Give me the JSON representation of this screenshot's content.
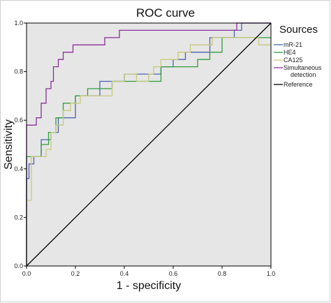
{
  "chart_data": {
    "type": "line",
    "title": "ROC curve",
    "xlabel": "1 - specificity",
    "ylabel": "Sensitivity",
    "xlim": [
      0.0,
      1.0
    ],
    "ylim": [
      0.0,
      1.0
    ],
    "xticks": [
      "0.0",
      "0.2",
      "0.4",
      "0.6",
      "0.8",
      "1.0"
    ],
    "yticks": [
      "0.0",
      "0.2",
      "0.4",
      "0.6",
      "0.8",
      "1.0"
    ],
    "grid": false,
    "background": "#e6e6e6",
    "legend": {
      "title": "Sources",
      "placement": "right"
    },
    "series": [
      {
        "name": "mR-21",
        "color": "#4a63b5",
        "x": [
          0,
          0,
          0.01,
          0.01,
          0.03,
          0.03,
          0.06,
          0.06,
          0.1,
          0.1,
          0.13,
          0.13,
          0.2,
          0.2,
          0.3,
          0.3,
          0.4,
          0.4,
          0.55,
          0.55,
          0.6,
          0.6,
          0.65,
          0.65,
          0.75,
          0.75,
          0.85,
          0.85,
          0.88,
          0.88,
          1
        ],
        "y": [
          0,
          0.36,
          0.36,
          0.42,
          0.42,
          0.45,
          0.45,
          0.52,
          0.52,
          0.55,
          0.55,
          0.61,
          0.61,
          0.7,
          0.7,
          0.76,
          0.76,
          0.79,
          0.79,
          0.82,
          0.82,
          0.85,
          0.85,
          0.88,
          0.88,
          0.94,
          0.94,
          0.97,
          0.97,
          1.0,
          1.0
        ]
      },
      {
        "name": "HE4",
        "color": "#2e9e3e",
        "x": [
          0,
          0,
          0.06,
          0.06,
          0.09,
          0.09,
          0.12,
          0.12,
          0.15,
          0.15,
          0.2,
          0.2,
          0.25,
          0.25,
          0.35,
          0.35,
          0.55,
          0.55,
          0.7,
          0.7,
          0.75,
          0.75,
          0.8,
          0.8,
          0.95,
          0.95,
          1
        ],
        "y": [
          0,
          0.45,
          0.45,
          0.5,
          0.5,
          0.55,
          0.55,
          0.61,
          0.61,
          0.67,
          0.67,
          0.7,
          0.7,
          0.73,
          0.73,
          0.76,
          0.76,
          0.82,
          0.82,
          0.85,
          0.85,
          0.88,
          0.88,
          0.94,
          0.94,
          0.94,
          0.94
        ]
      },
      {
        "name": "CA125",
        "color": "#c9c97a",
        "x": [
          0,
          0,
          0.02,
          0.02,
          0.08,
          0.08,
          0.1,
          0.1,
          0.12,
          0.12,
          0.15,
          0.15,
          0.18,
          0.18,
          0.22,
          0.22,
          0.35,
          0.35,
          0.4,
          0.4,
          0.45,
          0.45,
          0.5,
          0.5,
          0.52,
          0.52,
          0.55,
          0.55,
          0.62,
          0.62,
          0.67,
          0.67,
          0.76,
          0.76,
          0.95,
          0.95,
          1
        ],
        "y": [
          0,
          0.27,
          0.27,
          0.45,
          0.45,
          0.48,
          0.48,
          0.55,
          0.55,
          0.58,
          0.58,
          0.64,
          0.64,
          0.67,
          0.67,
          0.7,
          0.7,
          0.76,
          0.76,
          0.79,
          0.79,
          0.76,
          0.76,
          0.79,
          0.79,
          0.82,
          0.82,
          0.85,
          0.85,
          0.88,
          0.88,
          0.91,
          0.91,
          0.94,
          0.94,
          0.91,
          0.91
        ]
      },
      {
        "name": "Simultaneous detection",
        "color": "#8a2f9a",
        "x": [
          0,
          0,
          0.04,
          0.04,
          0.06,
          0.06,
          0.08,
          0.08,
          0.1,
          0.1,
          0.11,
          0.11,
          0.13,
          0.13,
          0.15,
          0.15,
          0.19,
          0.19,
          0.32,
          0.32,
          0.38,
          0.38,
          0.4,
          0.4,
          0.86,
          0.86,
          1
        ],
        "y": [
          0,
          0.58,
          0.58,
          0.61,
          0.61,
          0.67,
          0.67,
          0.73,
          0.73,
          0.76,
          0.76,
          0.82,
          0.82,
          0.85,
          0.85,
          0.88,
          0.88,
          0.91,
          0.91,
          0.94,
          0.94,
          0.97,
          0.97,
          0.97,
          0.97,
          1.0,
          1.0
        ]
      },
      {
        "name": "Reference",
        "color": "#000000",
        "x": [
          0,
          1
        ],
        "y": [
          0,
          1
        ]
      }
    ]
  }
}
